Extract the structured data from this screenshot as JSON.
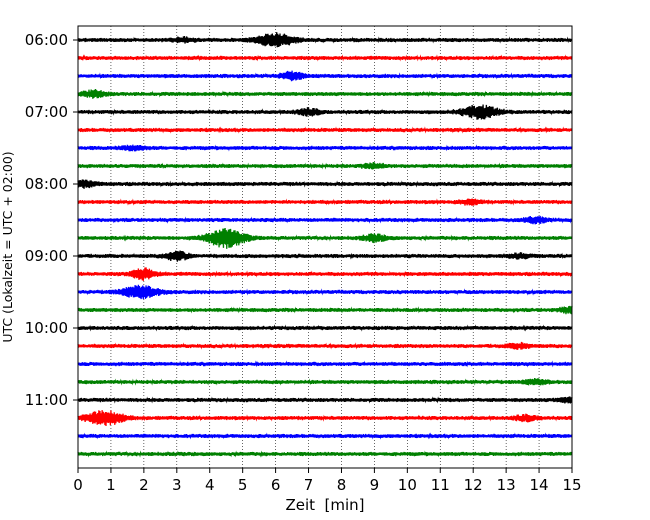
{
  "chart_data": {
    "type": "line",
    "title": "",
    "xlabel": "Zeit  [min]",
    "ylabel": "UTC (Lokalzeit = UTC + 02:00)",
    "xlim": [
      0,
      15
    ],
    "x_ticks": [
      "0",
      "1",
      "2",
      "3",
      "4",
      "5",
      "6",
      "7",
      "8",
      "9",
      "10",
      "11",
      "12",
      "13",
      "14",
      "15"
    ],
    "y_tick_labels": [
      "06:00",
      "07:00",
      "08:00",
      "09:00",
      "10:00",
      "11:00"
    ],
    "grid": "vertical dotted",
    "trace_interval_minutes": 15,
    "trace_colors": [
      "#000000",
      "#ff0000",
      "#0000ff",
      "#008000"
    ],
    "traces": [
      {
        "start": "06:00",
        "events": [
          {
            "t": 3.2,
            "amp": 2
          },
          {
            "t": 6.0,
            "amp": 6
          }
        ]
      },
      {
        "start": "06:15",
        "events": []
      },
      {
        "start": "06:30",
        "events": [
          {
            "t": 6.5,
            "amp": 3.5
          }
        ]
      },
      {
        "start": "06:45",
        "events": [
          {
            "t": 0.5,
            "amp": 3
          }
        ]
      },
      {
        "start": "07:00",
        "events": [
          {
            "t": 7.0,
            "amp": 3
          },
          {
            "t": 12.2,
            "amp": 6
          }
        ]
      },
      {
        "start": "07:15",
        "events": []
      },
      {
        "start": "07:30",
        "events": [
          {
            "t": 1.7,
            "amp": 2
          }
        ]
      },
      {
        "start": "07:45",
        "events": [
          {
            "t": 9.0,
            "amp": 2
          }
        ]
      },
      {
        "start": "08:00",
        "events": [
          {
            "t": 0.2,
            "amp": 3
          }
        ]
      },
      {
        "start": "08:15",
        "events": [
          {
            "t": 11.9,
            "amp": 2
          }
        ]
      },
      {
        "start": "08:30",
        "events": [
          {
            "t": 13.9,
            "amp": 2.5
          }
        ]
      },
      {
        "start": "08:45",
        "events": [
          {
            "t": 4.5,
            "amp": 9
          },
          {
            "t": 9.0,
            "amp": 3
          }
        ]
      },
      {
        "start": "09:00",
        "events": [
          {
            "t": 3.0,
            "amp": 4
          },
          {
            "t": 13.4,
            "amp": 2
          }
        ]
      },
      {
        "start": "09:15",
        "events": [
          {
            "t": 2.0,
            "amp": 5
          }
        ]
      },
      {
        "start": "09:30",
        "events": [
          {
            "t": 1.9,
            "amp": 5.5
          }
        ]
      },
      {
        "start": "09:45",
        "events": [
          {
            "t": 15.0,
            "amp": 3
          }
        ]
      },
      {
        "start": "10:00",
        "events": []
      },
      {
        "start": "10:15",
        "events": [
          {
            "t": 13.4,
            "amp": 2
          }
        ]
      },
      {
        "start": "10:30",
        "events": []
      },
      {
        "start": "10:45",
        "events": [
          {
            "t": 13.9,
            "amp": 2
          }
        ]
      },
      {
        "start": "11:00",
        "events": [
          {
            "t": 14.9,
            "amp": 2
          }
        ]
      },
      {
        "start": "11:15",
        "events": [
          {
            "t": 0.8,
            "amp": 7
          },
          {
            "t": 13.6,
            "amp": 2.5
          }
        ]
      },
      {
        "start": "11:30",
        "events": []
      },
      {
        "start": "11:45",
        "events": []
      }
    ]
  }
}
